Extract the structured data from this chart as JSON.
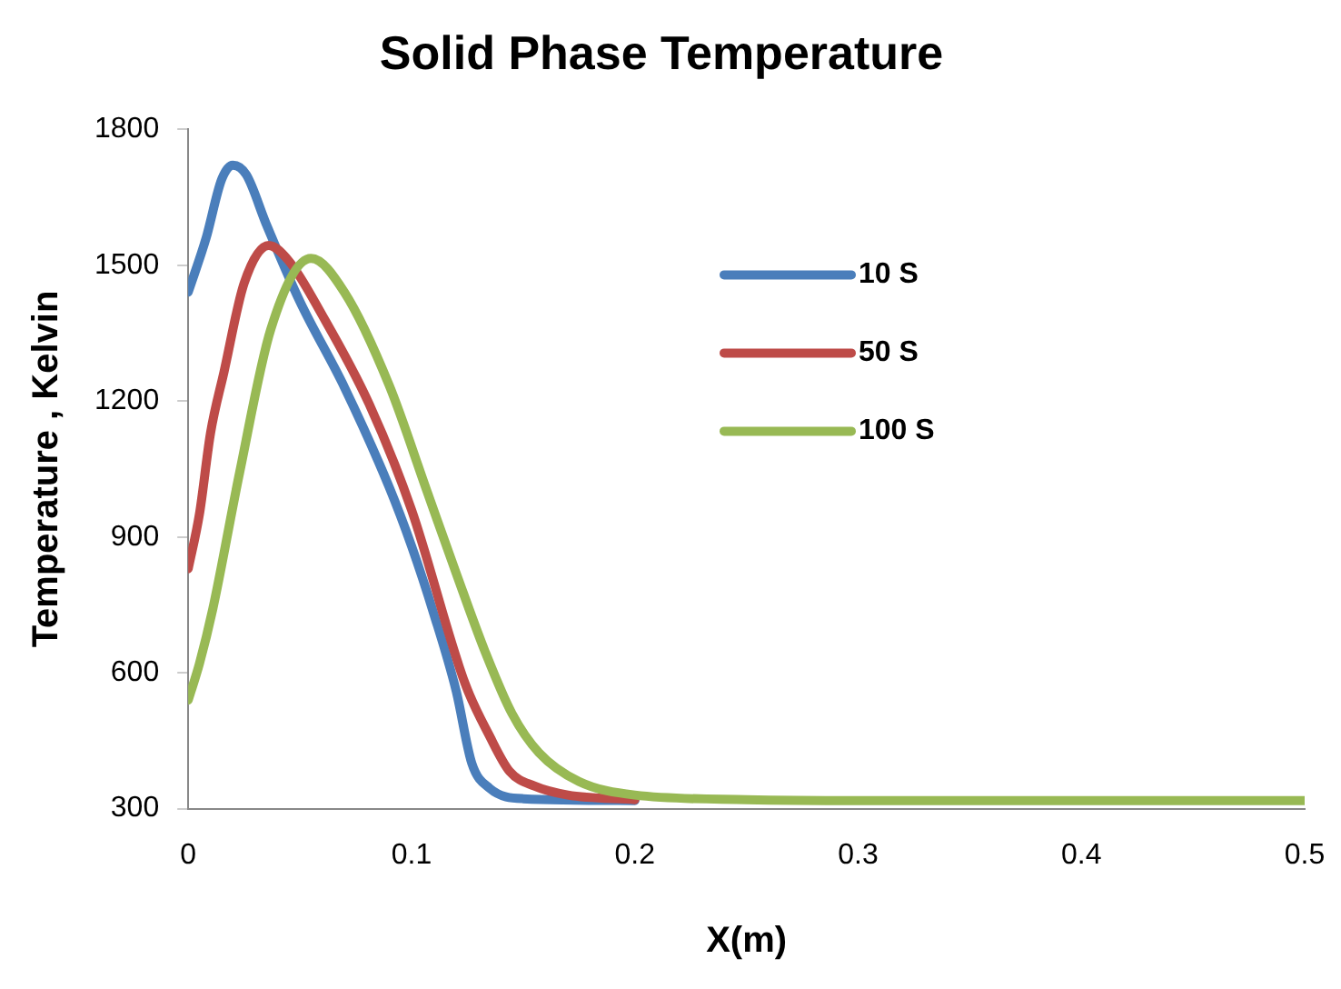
{
  "chart_data": {
    "type": "line",
    "title": "Solid Phase Temperature",
    "xlabel": "X(m)",
    "ylabel": "Temperature , Kelvin",
    "xlim": [
      0,
      0.5
    ],
    "xticks": [
      0,
      0.1,
      0.2,
      0.3,
      0.4,
      0.5
    ],
    "ylim": [
      300,
      1800
    ],
    "yticks": [
      300,
      600,
      900,
      1200,
      1500,
      1800
    ],
    "grid": false,
    "legend": "top right",
    "marker": "none",
    "line_style": "solid",
    "series": [
      {
        "name": "10 S",
        "color": "#4a7ebb",
        "x": [
          0,
          0.008,
          0.015,
          0.02,
          0.026,
          0.035,
          0.05,
          0.07,
          0.09,
          0.1,
          0.11,
          0.12,
          0.127,
          0.135,
          0.15,
          0.2
        ],
        "values": [
          1441,
          1560,
          1690,
          1721,
          1700,
          1590,
          1420,
          1230,
          1010,
          880,
          730,
          560,
          400,
          345,
          322,
          318
        ]
      },
      {
        "name": "50 S",
        "color": "#be4b48",
        "x": [
          0,
          0.005,
          0.01,
          0.016,
          0.025,
          0.036,
          0.045,
          0.06,
          0.081,
          0.1,
          0.124,
          0.135,
          0.144,
          0.155,
          0.17,
          0.2
        ],
        "values": [
          830,
          950,
          1130,
          1264,
          1460,
          1544,
          1510,
          1390,
          1194,
          960,
          576,
          460,
          382,
          350,
          330,
          320
        ]
      },
      {
        "name": "100 S",
        "color": "#98b954",
        "x": [
          0,
          0.005,
          0.011,
          0.023,
          0.037,
          0.055,
          0.07,
          0.09,
          0.107,
          0.12,
          0.133,
          0.145,
          0.157,
          0.175,
          0.2,
          0.25,
          0.3,
          0.4,
          0.5
        ],
        "values": [
          540,
          620,
          741,
          1042,
          1359,
          1515,
          1440,
          1235,
          1000,
          820,
          646,
          510,
          424,
          360,
          330,
          320,
          318,
          318,
          318
        ]
      }
    ]
  }
}
